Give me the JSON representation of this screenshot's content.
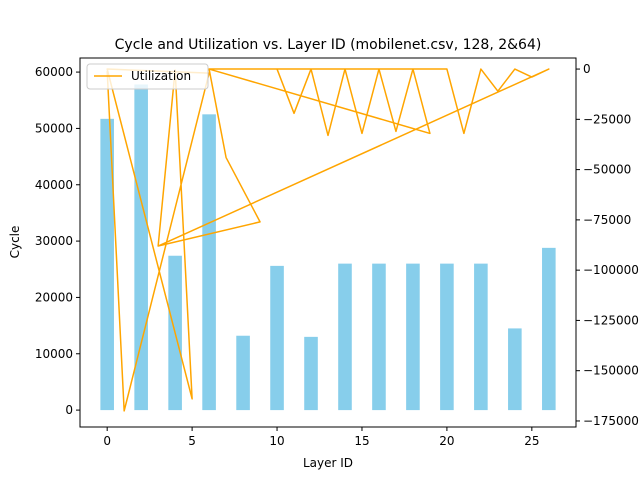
{
  "chart_data": {
    "type": "bar+line",
    "title": "Cycle and Utilization vs. Layer ID (mobilenet.csv, 128, 2&64)",
    "xlabel": "Layer ID",
    "ylabel": "Cycle",
    "xlim": [
      -1.6,
      27.6
    ],
    "ylim": [
      -3000,
      62500
    ],
    "y2lim": [
      -178000,
      5500
    ],
    "x_ticks": [
      0,
      5,
      10,
      15,
      20,
      25
    ],
    "y_ticks": [
      0,
      10000,
      20000,
      30000,
      40000,
      50000,
      60000
    ],
    "y2_ticks": [
      0,
      -25000,
      -50000,
      -75000,
      -100000,
      -125000,
      -150000,
      -175000
    ],
    "legend": {
      "position": "top-left",
      "entries": [
        "Utilization"
      ]
    },
    "grid": false,
    "bar_series": {
      "name": "Cycle",
      "color": "#87CEEB",
      "x": [
        0,
        2,
        4,
        6,
        8,
        10,
        12,
        14,
        16,
        18,
        20,
        22,
        24,
        26
      ],
      "values": [
        51700,
        57800,
        27400,
        52500,
        13200,
        25600,
        13000,
        26000,
        26000,
        26000,
        26000,
        26000,
        14500,
        28800
      ]
    },
    "line_series": {
      "name": "Utilization",
      "color": "#FFA500",
      "points": [
        [
          0,
          -1000
        ],
        [
          1,
          -170000
        ],
        [
          6,
          -2000
        ],
        [
          0,
          0
        ],
        [
          5,
          -164000
        ],
        [
          4,
          -500
        ],
        [
          3,
          -88000
        ],
        [
          9,
          -76000
        ],
        [
          7,
          -44000
        ],
        [
          6,
          0
        ],
        [
          10,
          0
        ],
        [
          11,
          -22000
        ],
        [
          12,
          0
        ],
        [
          13,
          -33000
        ],
        [
          14,
          0
        ],
        [
          15,
          -32000
        ],
        [
          16,
          0
        ],
        [
          17,
          -31000
        ],
        [
          18,
          0
        ],
        [
          19,
          -32000
        ],
        [
          6,
          0
        ],
        [
          20,
          0
        ],
        [
          21,
          -32000
        ],
        [
          22,
          0
        ],
        [
          23,
          -11000
        ],
        [
          24,
          0
        ],
        [
          25,
          -4000
        ],
        [
          26,
          0
        ],
        [
          26,
          0
        ],
        [
          3,
          -88000
        ],
        [
          26,
          0
        ]
      ]
    }
  }
}
